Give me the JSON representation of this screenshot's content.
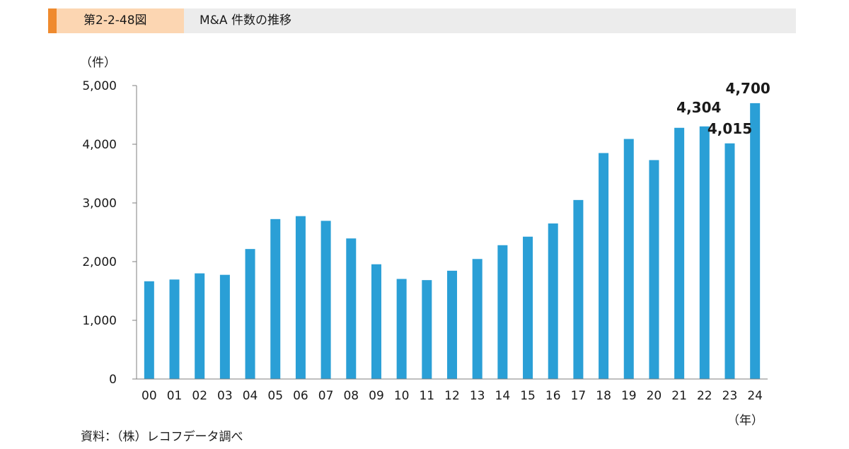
{
  "header": {
    "figure_number": "第2-2-48図",
    "title": "M&A 件数の推移"
  },
  "unit_label": "（件）",
  "x_unit_label": "（年）",
  "source": "資料：（株）レコフデータ調べ",
  "colors": {
    "bar": "#2a9fd6",
    "header_accent": "#ef8a2e",
    "header_fig_bg": "#fcd6b2",
    "header_bg": "#ececec"
  },
  "chart_data": {
    "type": "bar",
    "title": "M&A 件数の推移",
    "xlabel": "（年）",
    "ylabel": "（件）",
    "ylim": [
      0,
      5000
    ],
    "yticks": [
      0,
      1000,
      2000,
      3000,
      4000,
      5000
    ],
    "ytick_labels": [
      "0",
      "1,000",
      "2,000",
      "3,000",
      "4,000",
      "5,000"
    ],
    "grid": false,
    "categories": [
      "00",
      "01",
      "02",
      "03",
      "04",
      "05",
      "06",
      "07",
      "08",
      "09",
      "10",
      "11",
      "12",
      "13",
      "14",
      "15",
      "16",
      "17",
      "18",
      "19",
      "20",
      "21",
      "22",
      "23",
      "24"
    ],
    "values": [
      1665,
      1695,
      1800,
      1775,
      2215,
      2725,
      2775,
      2695,
      2395,
      1955,
      1705,
      1685,
      1845,
      2045,
      2280,
      2425,
      2650,
      3050,
      3850,
      4090,
      3730,
      4280,
      4304,
      4015,
      4700
    ],
    "data_labels": [
      {
        "category": "22",
        "text": "4,304"
      },
      {
        "category": "23",
        "text": "4,015"
      },
      {
        "category": "24",
        "text": "4,700"
      }
    ]
  }
}
